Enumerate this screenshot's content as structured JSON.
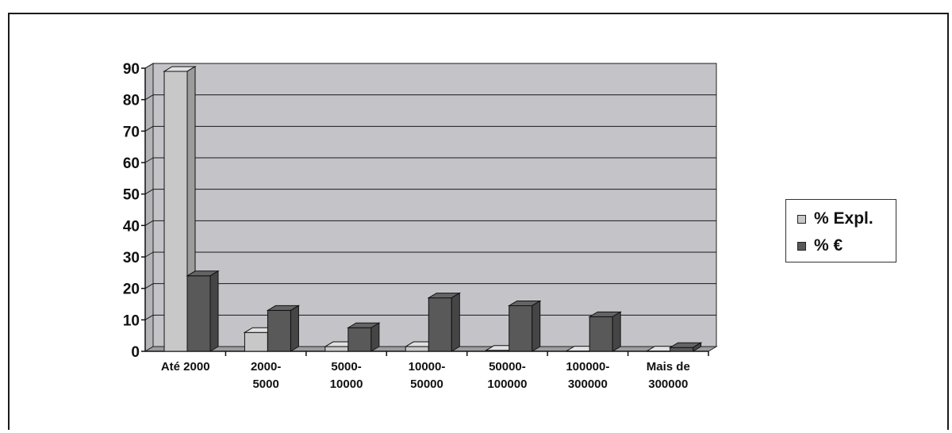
{
  "chart_data": {
    "type": "bar",
    "categories": [
      [
        "Até 2000"
      ],
      [
        "2000-",
        "5000"
      ],
      [
        "5000-",
        "10000"
      ],
      [
        "10000-",
        "50000"
      ],
      [
        "50000-",
        "100000"
      ],
      [
        "100000-",
        "300000"
      ],
      [
        "Mais de",
        "300000"
      ]
    ],
    "series": [
      {
        "name": "% Expl.",
        "color": "#c8c8c8",
        "values": [
          89,
          6,
          1.5,
          1.5,
          0.3,
          0.1,
          0.1
        ]
      },
      {
        "name": "% €",
        "color": "#595959",
        "values": [
          24,
          13,
          7.5,
          17,
          14.5,
          11,
          1.2
        ]
      }
    ],
    "ylim": [
      0,
      90
    ],
    "yticks": [
      "0",
      "10",
      "20",
      "30",
      "40",
      "50",
      "60",
      "70",
      "80",
      "90"
    ],
    "grid": true,
    "plot_background": "#c4c4c8",
    "legend_position": "right"
  }
}
